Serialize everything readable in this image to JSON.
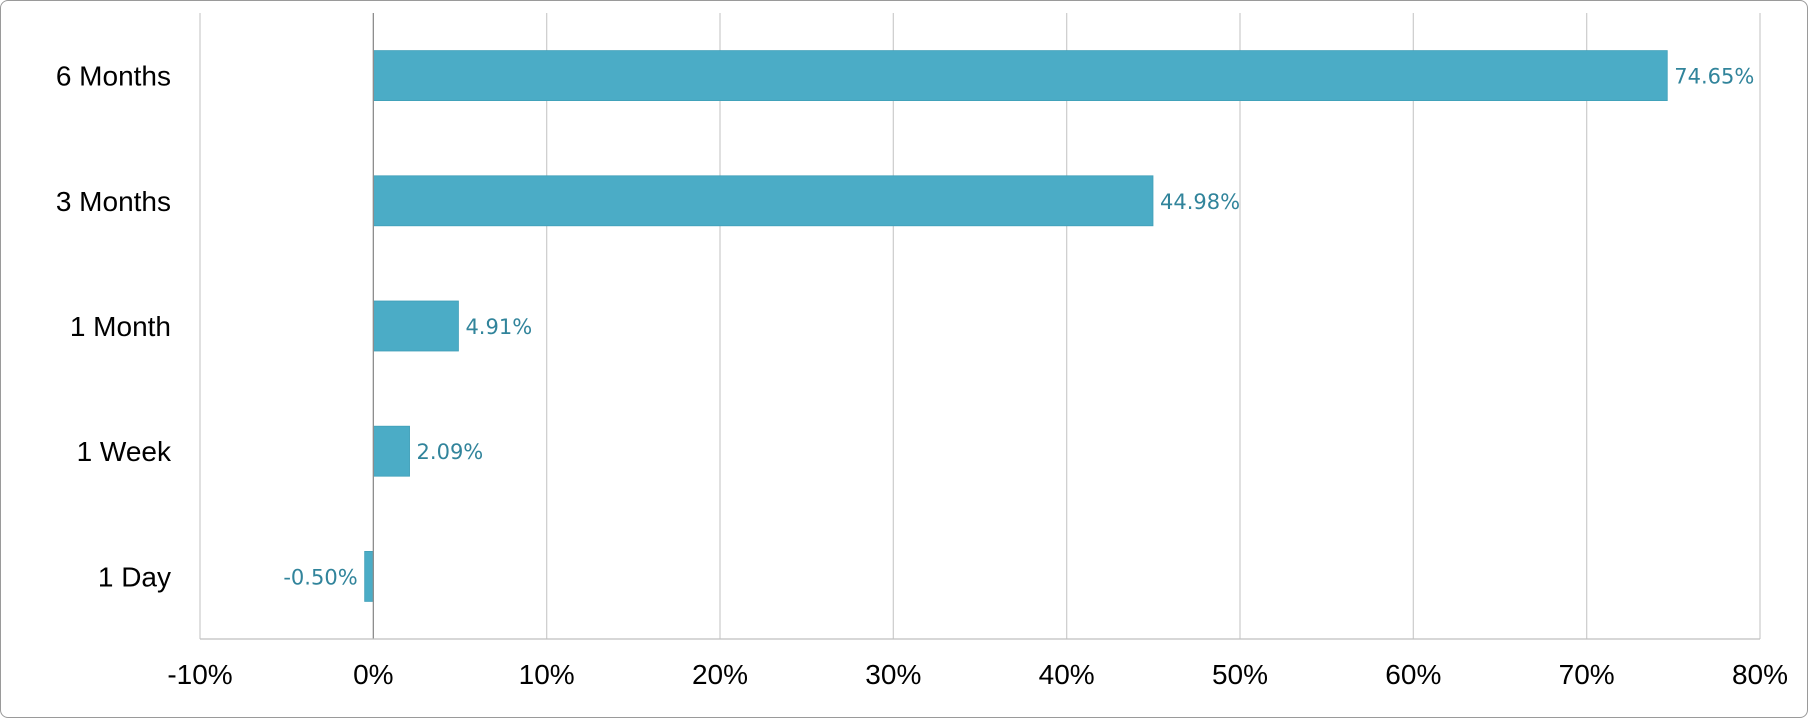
{
  "chart_data": {
    "type": "bar",
    "orientation": "horizontal",
    "categories": [
      "6 Months",
      "3 Months",
      "1 Month",
      "1 Week",
      "1 Day"
    ],
    "values": [
      74.65,
      44.98,
      4.91,
      2.09,
      -0.5
    ],
    "data_labels": [
      "74.65%",
      "44.98%",
      "4.91%",
      "2.09%",
      "-0.50%"
    ],
    "xlim": [
      -10,
      80
    ],
    "x_ticks": [
      -10,
      0,
      10,
      20,
      30,
      40,
      50,
      60,
      70,
      80
    ],
    "x_tick_labels": [
      "-10%",
      "0%",
      "10%",
      "20%",
      "30%",
      "40%",
      "50%",
      "60%",
      "70%",
      "80%"
    ],
    "grid": "vertical",
    "bar_color": "#4BACC6",
    "label_color": "#31849B",
    "title": "",
    "xlabel": "",
    "ylabel": ""
  }
}
